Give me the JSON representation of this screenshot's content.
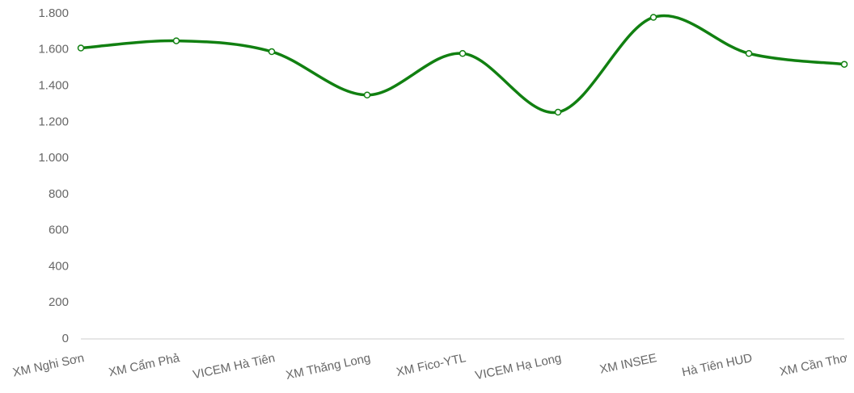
{
  "chart_data": {
    "type": "line",
    "categories": [
      "XM Nghi Sơn",
      "XM Cẩm Phả",
      "VICEM Hà Tiên",
      "XM Thăng Long",
      "XM Fico-YTL",
      "VICEM Hạ Long",
      "XM INSEE",
      "Hà Tiên HUD",
      "XM Cần Thơ"
    ],
    "series": [
      {
        "color": "#118011",
        "values": [
          1610,
          1650,
          1590,
          1350,
          1580,
          1255,
          1780,
          1580,
          1520
        ]
      }
    ],
    "ylim": [
      0,
      1800
    ],
    "yticks": [
      0,
      200,
      400,
      600,
      800,
      {
        "value": 1000,
        "label": "1.000"
      },
      {
        "value": 1200,
        "label": "1.200"
      },
      {
        "value": 1400,
        "label": "1.400"
      },
      {
        "value": 1600,
        "label": "1.600"
      },
      {
        "value": 1800,
        "label": "1.800"
      }
    ],
    "smooth": true,
    "grid": false
  }
}
